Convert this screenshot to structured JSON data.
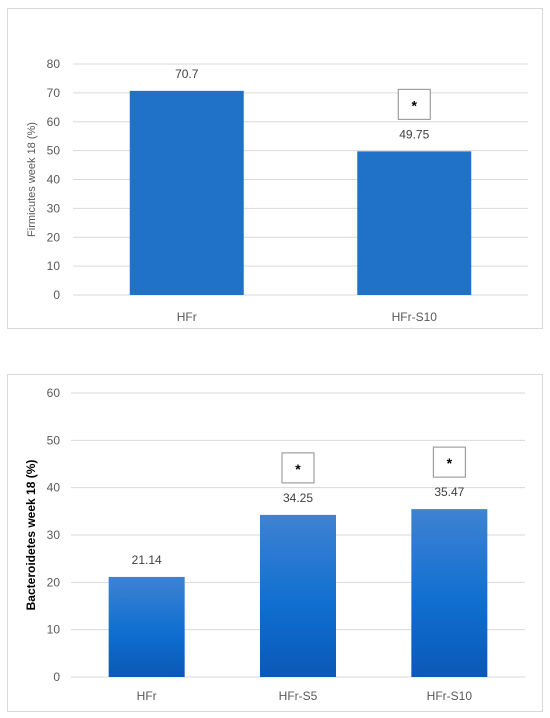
{
  "chart_data": [
    {
      "type": "bar",
      "categories": [
        "HFr",
        "HFr-S10"
      ],
      "values": [
        70.7,
        49.75
      ],
      "value_labels": [
        "70.7",
        "49.75"
      ],
      "significance": [
        "",
        "*"
      ],
      "ylabel": "Firmicutes week 18 (%)",
      "ylim": [
        0,
        80
      ],
      "yticks": [
        "0",
        "10",
        "20",
        "30",
        "40",
        "50",
        "60",
        "70",
        "80"
      ],
      "grid": true,
      "bar_color": "#1f72c8"
    },
    {
      "type": "bar",
      "categories": [
        "HFr",
        "HFr-S5",
        "HFr-S10"
      ],
      "values": [
        21.14,
        34.25,
        35.47
      ],
      "value_labels": [
        "21.14",
        "34.25",
        "35.47"
      ],
      "significance": [
        "",
        "*",
        "*"
      ],
      "ylabel": "Bacteroidetes week 18 (%)",
      "ylim": [
        0,
        60
      ],
      "yticks": [
        "0",
        "10",
        "20",
        "30",
        "40",
        "50",
        "60"
      ],
      "grid": true,
      "bar_color_top": "#3f82d3",
      "bar_color_mid": "#0f6fd0",
      "bar_color_bottom": "#0b58b8"
    }
  ]
}
